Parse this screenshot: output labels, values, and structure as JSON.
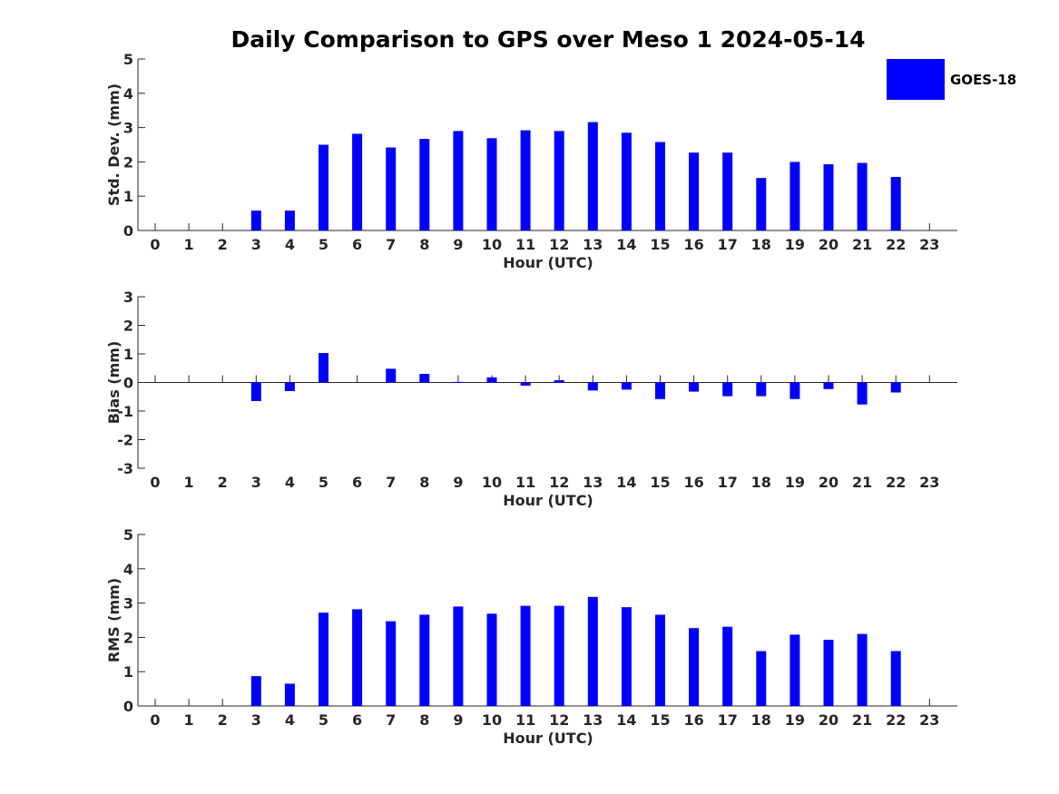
{
  "title": "Daily Comparison to GPS over Meso 1 2024-05-14",
  "legend": {
    "label": "GOES-18",
    "color": "#0000ff"
  },
  "chart_data": [
    {
      "type": "bar",
      "id": "std",
      "series_name": "GOES-18",
      "xlabel": "Hour (UTC)",
      "ylabel": "Std. Dev. (mm)",
      "ylim": [
        0,
        5
      ],
      "yticks": [
        0,
        1,
        2,
        3,
        4,
        5
      ],
      "categories": [
        "0",
        "1",
        "2",
        "3",
        "4",
        "5",
        "6",
        "7",
        "8",
        "9",
        "10",
        "11",
        "12",
        "13",
        "14",
        "15",
        "16",
        "17",
        "18",
        "19",
        "20",
        "21",
        "22",
        "23"
      ],
      "values": [
        null,
        null,
        null,
        0.58,
        0.58,
        2.5,
        2.82,
        2.42,
        2.67,
        2.9,
        2.69,
        2.92,
        2.9,
        3.16,
        2.85,
        2.58,
        2.27,
        2.27,
        1.53,
        2.0,
        1.93,
        1.97,
        1.56,
        null
      ]
    },
    {
      "type": "bar",
      "id": "bias",
      "series_name": "GOES-18",
      "xlabel": "Hour (UTC)",
      "ylabel": "Bias (mm)",
      "ylim": [
        -3,
        3
      ],
      "yticks": [
        -3,
        -2,
        -1,
        0,
        1,
        2,
        3
      ],
      "categories": [
        "0",
        "1",
        "2",
        "3",
        "4",
        "5",
        "6",
        "7",
        "8",
        "9",
        "10",
        "11",
        "12",
        "13",
        "14",
        "15",
        "16",
        "17",
        "18",
        "19",
        "20",
        "21",
        "22",
        "23"
      ],
      "values": [
        null,
        null,
        null,
        -0.65,
        -0.3,
        1.03,
        null,
        0.48,
        0.3,
        0.02,
        0.18,
        -0.11,
        0.08,
        -0.28,
        -0.25,
        -0.58,
        -0.32,
        -0.48,
        -0.48,
        -0.58,
        -0.23,
        -0.77,
        -0.35,
        null
      ]
    },
    {
      "type": "bar",
      "id": "rms",
      "series_name": "GOES-18",
      "xlabel": "Hour (UTC)",
      "ylabel": "RMS (mm)",
      "ylim": [
        0,
        5
      ],
      "yticks": [
        0,
        1,
        2,
        3,
        4,
        5
      ],
      "categories": [
        "0",
        "1",
        "2",
        "3",
        "4",
        "5",
        "6",
        "7",
        "8",
        "9",
        "10",
        "11",
        "12",
        "13",
        "14",
        "15",
        "16",
        "17",
        "18",
        "19",
        "20",
        "21",
        "22",
        "23"
      ],
      "values": [
        null,
        null,
        null,
        0.87,
        0.65,
        2.72,
        2.82,
        2.47,
        2.66,
        2.9,
        2.69,
        2.92,
        2.92,
        3.18,
        2.88,
        2.66,
        2.27,
        2.31,
        1.6,
        2.08,
        1.93,
        2.1,
        1.6,
        null
      ]
    }
  ]
}
